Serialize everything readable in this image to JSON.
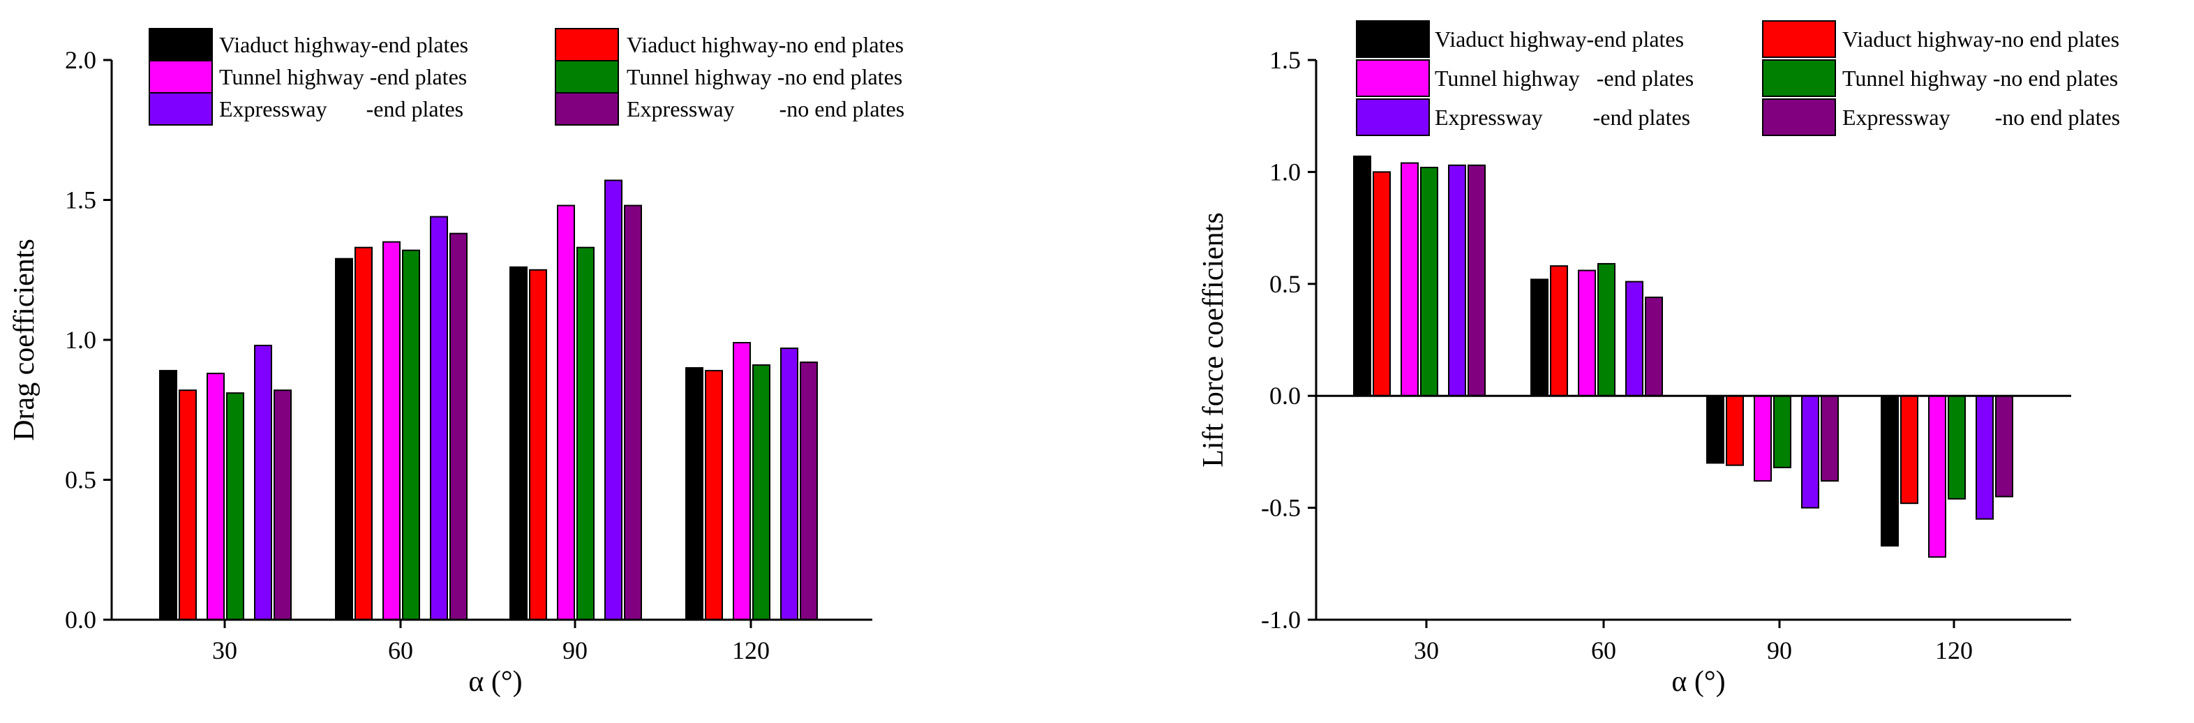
{
  "chart_data": [
    {
      "type": "bar",
      "title": "",
      "xlabel": "α (°)",
      "ylabel": "Drag coefficients",
      "categories": [
        "30",
        "60",
        "90",
        "120"
      ],
      "ylim": [
        0.0,
        2.0
      ],
      "yticks": [
        "0.0",
        "0.5",
        "1.0",
        "1.5",
        "2.0"
      ],
      "legend_position": "top",
      "series": [
        {
          "name": "Viaduct highway-end plates",
          "color": "#000000",
          "values": [
            0.89,
            1.29,
            1.26,
            0.9
          ]
        },
        {
          "name": "Viaduct highway-no end plates",
          "color": "#ff0000",
          "values": [
            0.82,
            1.33,
            1.25,
            0.89
          ]
        },
        {
          "name": "Tunnel highway -end plates",
          "color": "#ff00ff",
          "values": [
            0.88,
            1.35,
            1.48,
            0.99
          ]
        },
        {
          "name": "Tunnel highway -no end plates",
          "color": "#008000",
          "values": [
            0.81,
            1.32,
            1.33,
            0.91
          ]
        },
        {
          "name": "Expressway       -end plates",
          "color": "#8000ff",
          "values": [
            0.98,
            1.44,
            1.57,
            0.97
          ]
        },
        {
          "name": "Expressway        -no end plates",
          "color": "#800080",
          "values": [
            0.82,
            1.38,
            1.48,
            0.92
          ]
        }
      ]
    },
    {
      "type": "bar",
      "title": "",
      "xlabel": "α (°)",
      "ylabel": "Lift force coefficients",
      "categories": [
        "30",
        "60",
        "90",
        "120"
      ],
      "ylim": [
        -1.0,
        1.5
      ],
      "yticks": [
        "-1.0",
        "-0.5",
        "0.0",
        "0.5",
        "1.0",
        "1.5"
      ],
      "legend_position": "top",
      "series": [
        {
          "name": "Viaduct highway-end plates",
          "color": "#000000",
          "values": [
            1.07,
            0.52,
            -0.3,
            -0.67
          ]
        },
        {
          "name": "Viaduct highway-no end plates",
          "color": "#ff0000",
          "values": [
            1.0,
            0.58,
            -0.31,
            -0.48
          ]
        },
        {
          "name": "Tunnel highway   -end plates",
          "color": "#ff00ff",
          "values": [
            1.04,
            0.56,
            -0.38,
            -0.72
          ]
        },
        {
          "name": "Tunnel highway -no end plates",
          "color": "#008000",
          "values": [
            1.02,
            0.59,
            -0.32,
            -0.46
          ]
        },
        {
          "name": "Expressway         -end plates",
          "color": "#8000ff",
          "values": [
            1.03,
            0.51,
            -0.5,
            -0.55
          ]
        },
        {
          "name": "Expressway        -no end plates",
          "color": "#800080",
          "values": [
            1.03,
            0.44,
            -0.38,
            -0.45
          ]
        }
      ]
    }
  ]
}
